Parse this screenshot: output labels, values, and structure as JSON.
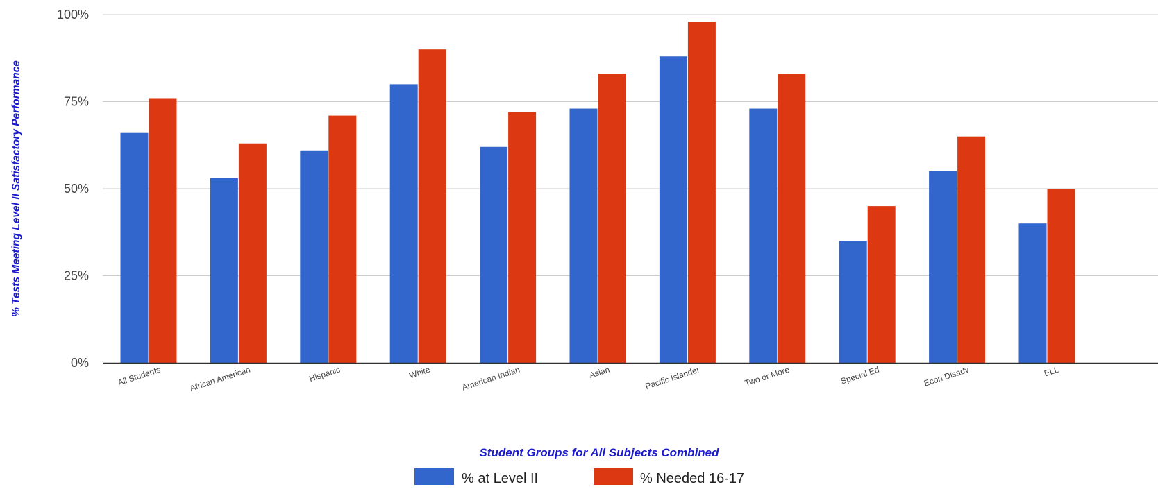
{
  "chart_data": {
    "type": "bar",
    "categories": [
      "All Students",
      "African American",
      "Hispanic",
      "White",
      "American Indian",
      "Asian",
      "Pacific Islander",
      "Two or More",
      "Special Ed",
      "Econ Disadv",
      "ELL"
    ],
    "series": [
      {
        "name": "% at Level II",
        "color": "#3366cc",
        "values": [
          66,
          53,
          61,
          80,
          62,
          73,
          88,
          73,
          35,
          55,
          40
        ]
      },
      {
        "name": "% Needed 16-17",
        "color": "#dc3912",
        "values": [
          76,
          63,
          71,
          90,
          72,
          83,
          98,
          83,
          45,
          65,
          50
        ]
      }
    ],
    "title": "",
    "xlabel": "Student Groups for All Subjects Combined",
    "ylabel": "% Tests Meeting Level II Satisfactory Performance",
    "ylim": [
      0,
      100
    ],
    "yticks": [
      0,
      25,
      50,
      75,
      100
    ],
    "ytick_labels": [
      "0%",
      "25%",
      "50%",
      "75%",
      "100%"
    ],
    "grid": true,
    "legend_position": "bottom",
    "axis_title_color": "#1a1acc",
    "gridline_color": "#cccccc",
    "axis_line_color": "#333333",
    "tick_label_color": "#444444"
  }
}
